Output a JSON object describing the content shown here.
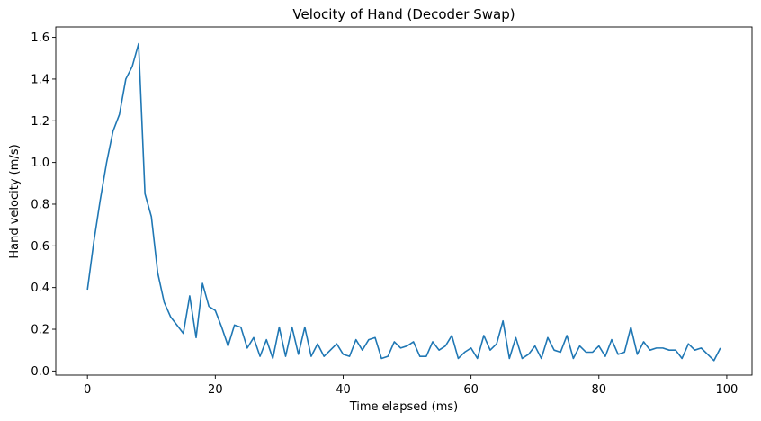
{
  "chart_data": {
    "type": "line",
    "title": "Velocity of Hand (Decoder Swap)",
    "xlabel": "Time elapsed (ms)",
    "ylabel": "Hand velocity (m/s)",
    "xlim": [
      -4.95,
      103.95
    ],
    "ylim": [
      -0.02,
      1.65
    ],
    "xticks": [
      0,
      20,
      40,
      60,
      80,
      100
    ],
    "xtick_labels": [
      "0",
      "20",
      "40",
      "60",
      "80",
      "100"
    ],
    "yticks": [
      0.0,
      0.2,
      0.4,
      0.6,
      0.8,
      1.0,
      1.2,
      1.4,
      1.6
    ],
    "ytick_labels": [
      "0.0",
      "0.2",
      "0.4",
      "0.6",
      "0.8",
      "1.0",
      "1.2",
      "1.4",
      "1.6"
    ],
    "grid": false,
    "series": [
      {
        "color": "#1f77b4",
        "x": [
          0,
          1,
          2,
          3,
          4,
          5,
          6,
          7,
          8,
          9,
          10,
          11,
          12,
          13,
          14,
          15,
          16,
          17,
          18,
          19,
          20,
          21,
          22,
          23,
          24,
          25,
          26,
          27,
          28,
          29,
          30,
          31,
          32,
          33,
          34,
          35,
          36,
          37,
          38,
          39,
          40,
          41,
          42,
          43,
          44,
          45,
          46,
          47,
          48,
          49,
          50,
          51,
          52,
          53,
          54,
          55,
          56,
          57,
          58,
          59,
          60,
          61,
          62,
          63,
          64,
          65,
          66,
          67,
          68,
          69,
          70,
          71,
          72,
          73,
          74,
          75,
          76,
          77,
          78,
          79,
          80,
          81,
          82,
          83,
          84,
          85,
          86,
          87,
          88,
          89,
          90,
          91,
          92,
          93,
          94,
          95,
          96,
          97,
          98,
          99
        ],
        "y": [
          0.39,
          0.62,
          0.82,
          1.0,
          1.15,
          1.23,
          1.4,
          1.46,
          1.57,
          0.85,
          0.74,
          0.47,
          0.33,
          0.26,
          0.22,
          0.18,
          0.36,
          0.16,
          0.42,
          0.31,
          0.29,
          0.21,
          0.12,
          0.22,
          0.21,
          0.11,
          0.16,
          0.07,
          0.15,
          0.06,
          0.21,
          0.07,
          0.21,
          0.08,
          0.21,
          0.07,
          0.13,
          0.07,
          0.1,
          0.13,
          0.08,
          0.07,
          0.15,
          0.1,
          0.15,
          0.16,
          0.06,
          0.07,
          0.14,
          0.11,
          0.12,
          0.14,
          0.07,
          0.07,
          0.14,
          0.1,
          0.12,
          0.17,
          0.06,
          0.09,
          0.11,
          0.06,
          0.17,
          0.1,
          0.13,
          0.24,
          0.06,
          0.16,
          0.06,
          0.08,
          0.12,
          0.06,
          0.16,
          0.1,
          0.09,
          0.17,
          0.06,
          0.12,
          0.09,
          0.09,
          0.12,
          0.07,
          0.15,
          0.08,
          0.09,
          0.21,
          0.08,
          0.14,
          0.1,
          0.11,
          0.11,
          0.1,
          0.1,
          0.06,
          0.13,
          0.1,
          0.11,
          0.08,
          0.05,
          0.11
        ]
      }
    ]
  }
}
